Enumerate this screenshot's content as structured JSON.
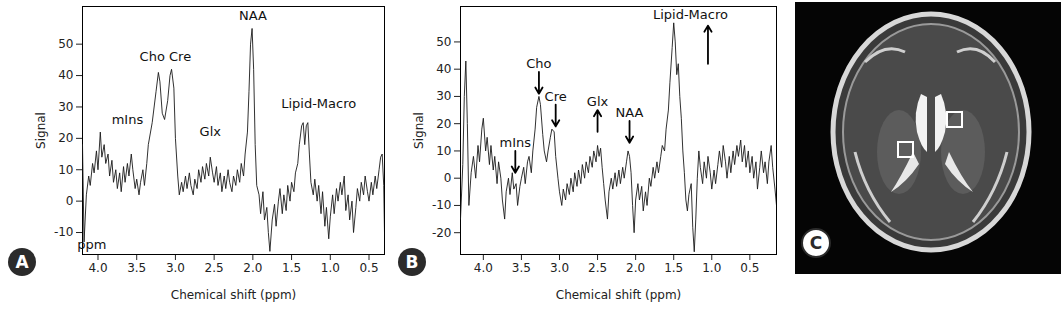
{
  "chart_data": [
    {
      "type": "line",
      "panel_label": "A",
      "x_label": "Chemical shift (ppm)",
      "y_label": "Signal",
      "color": "#1a1a1a",
      "grid": false,
      "xlim": [
        4.2,
        0.3
      ],
      "ylim": [
        -17,
        62
      ],
      "xticks": [
        {
          "value": 4,
          "label": "4.0"
        },
        3.5,
        {
          "value": 3,
          "label": "3.0"
        },
        2.5,
        {
          "value": 2,
          "label": "2.0"
        },
        1.5,
        {
          "value": 1,
          "label": "1.0"
        },
        0.5
      ],
      "yticks": [
        -10,
        0,
        10,
        20,
        30,
        40,
        50
      ],
      "annotations": [
        {
          "text": "mIns",
          "x": 3.62,
          "y": 26
        },
        {
          "text": "Cho Cre",
          "x": 3.13,
          "y": 46
        },
        {
          "text": "Glx",
          "x": 2.55,
          "y": 22
        },
        {
          "text": "NAA",
          "x": 2.0,
          "y": 59
        },
        {
          "text": "Lipid-Macro",
          "x": 1.15,
          "y": 31
        },
        {
          "text": "ppm",
          "x": 4.08,
          "y": -14
        }
      ],
      "x": [
        4.2,
        4.18,
        4.15,
        4.12,
        4.1,
        4.07,
        4.05,
        4.02,
        4.0,
        3.97,
        3.95,
        3.92,
        3.9,
        3.87,
        3.85,
        3.82,
        3.8,
        3.77,
        3.75,
        3.72,
        3.7,
        3.67,
        3.65,
        3.62,
        3.6,
        3.57,
        3.55,
        3.52,
        3.5,
        3.47,
        3.45,
        3.42,
        3.4,
        3.37,
        3.35,
        3.3,
        3.25,
        3.22,
        3.2,
        3.17,
        3.14,
        3.1,
        3.07,
        3.05,
        3.02,
        3.0,
        2.97,
        2.95,
        2.92,
        2.9,
        2.87,
        2.85,
        2.82,
        2.8,
        2.77,
        2.75,
        2.72,
        2.7,
        2.67,
        2.65,
        2.62,
        2.6,
        2.57,
        2.55,
        2.52,
        2.5,
        2.47,
        2.45,
        2.42,
        2.4,
        2.37,
        2.35,
        2.32,
        2.3,
        2.27,
        2.25,
        2.22,
        2.2,
        2.17,
        2.15,
        2.12,
        2.1,
        2.07,
        2.05,
        2.03,
        2.01,
        1.99,
        1.97,
        1.95,
        1.92,
        1.9,
        1.87,
        1.85,
        1.82,
        1.8,
        1.78,
        1.75,
        1.72,
        1.7,
        1.67,
        1.65,
        1.62,
        1.6,
        1.57,
        1.55,
        1.52,
        1.5,
        1.47,
        1.45,
        1.42,
        1.4,
        1.37,
        1.35,
        1.33,
        1.31,
        1.29,
        1.27,
        1.25,
        1.22,
        1.2,
        1.17,
        1.15,
        1.12,
        1.1,
        1.07,
        1.05,
        1.02,
        1.0,
        0.97,
        0.95,
        0.92,
        0.9,
        0.87,
        0.85,
        0.82,
        0.8,
        0.77,
        0.75,
        0.72,
        0.7,
        0.67,
        0.65,
        0.62,
        0.6,
        0.57,
        0.55,
        0.52,
        0.5,
        0.47,
        0.45,
        0.42,
        0.4,
        0.37,
        0.35,
        0.33,
        0.31,
        0.3
      ],
      "values": [
        18,
        -13,
        2,
        8,
        5,
        12,
        9,
        16,
        10,
        22,
        14,
        18,
        12,
        15,
        8,
        13,
        6,
        10,
        4,
        9,
        3,
        11,
        6,
        12,
        8,
        15,
        10,
        4,
        7,
        2,
        6,
        10,
        5,
        12,
        18,
        25,
        35,
        41,
        38,
        28,
        26,
        32,
        40,
        42,
        36,
        20,
        8,
        2,
        6,
        3,
        8,
        4,
        9,
        5,
        2,
        7,
        4,
        10,
        6,
        11,
        7,
        12,
        8,
        14,
        9,
        6,
        11,
        5,
        9,
        3,
        8,
        4,
        10,
        6,
        3,
        8,
        5,
        10,
        6,
        12,
        8,
        15,
        22,
        35,
        50,
        55,
        42,
        18,
        5,
        2,
        -4,
        3,
        -6,
        -2,
        -10,
        -16,
        -6,
        -1,
        -8,
        0,
        4,
        -4,
        2,
        -3,
        5,
        0,
        6,
        3,
        9,
        12,
        18,
        24,
        25,
        18,
        24,
        25,
        15,
        6,
        2,
        7,
        0,
        5,
        -4,
        3,
        -8,
        -2,
        -12,
        -5,
        2,
        -4,
        4,
        0,
        6,
        2,
        8,
        -3,
        2,
        -6,
        0,
        -10,
        -2,
        4,
        0,
        6,
        2,
        8,
        3,
        0,
        6,
        2,
        8,
        4,
        10,
        14,
        15,
        5,
        -10
      ]
    },
    {
      "type": "line",
      "panel_label": "B",
      "x_label": "Chemical shift (ppm)",
      "y_label": "Signal",
      "color": "#1a1a1a",
      "grid": false,
      "xlim": [
        4.3,
        0.15
      ],
      "ylim": [
        -28,
        63
      ],
      "xticks": [
        {
          "value": 4,
          "label": "4.0"
        },
        3.5,
        {
          "value": 3,
          "label": "3.0"
        },
        2.5,
        {
          "value": 2,
          "label": "2.0"
        },
        1.5,
        {
          "value": 1,
          "label": "1.0"
        },
        0.5
      ],
      "yticks": [
        -20,
        -10,
        0,
        10,
        20,
        30,
        40,
        50
      ],
      "annotations": [
        {
          "text": "mIns",
          "x": 3.58,
          "y": 13,
          "arrow": "down"
        },
        {
          "text": "Cho",
          "x": 3.27,
          "y": 42,
          "arrow": "down"
        },
        {
          "text": "Cre",
          "x": 3.05,
          "y": 30,
          "arrow": "down"
        },
        {
          "text": "Glx",
          "x": 2.5,
          "y": 28,
          "arrow": "up"
        },
        {
          "text": "NAA",
          "x": 2.08,
          "y": 24,
          "arrow": "down"
        },
        {
          "text": "Lipid-Macro",
          "x": 1.28,
          "y": 60,
          "arrow": "up",
          "arrow_x": 1.05
        }
      ],
      "x": [
        4.3,
        4.27,
        4.25,
        4.23,
        4.21,
        4.19,
        4.16,
        4.13,
        4.1,
        4.07,
        4.05,
        4.02,
        4.0,
        3.97,
        3.95,
        3.92,
        3.9,
        3.87,
        3.85,
        3.82,
        3.8,
        3.77,
        3.75,
        3.72,
        3.7,
        3.67,
        3.65,
        3.62,
        3.6,
        3.57,
        3.55,
        3.52,
        3.5,
        3.47,
        3.45,
        3.42,
        3.4,
        3.37,
        3.35,
        3.32,
        3.3,
        3.27,
        3.25,
        3.22,
        3.2,
        3.17,
        3.15,
        3.12,
        3.1,
        3.07,
        3.05,
        3.02,
        3.0,
        2.97,
        2.95,
        2.92,
        2.9,
        2.87,
        2.85,
        2.82,
        2.8,
        2.77,
        2.75,
        2.72,
        2.7,
        2.67,
        2.65,
        2.62,
        2.6,
        2.57,
        2.55,
        2.52,
        2.5,
        2.48,
        2.46,
        2.44,
        2.42,
        2.4,
        2.37,
        2.35,
        2.32,
        2.3,
        2.27,
        2.25,
        2.22,
        2.2,
        2.17,
        2.15,
        2.12,
        2.1,
        2.08,
        2.06,
        2.04,
        2.02,
        2.0,
        1.97,
        1.95,
        1.92,
        1.9,
        1.87,
        1.85,
        1.82,
        1.8,
        1.77,
        1.75,
        1.72,
        1.7,
        1.67,
        1.65,
        1.62,
        1.6,
        1.57,
        1.55,
        1.52,
        1.5,
        1.48,
        1.46,
        1.44,
        1.42,
        1.4,
        1.38,
        1.36,
        1.34,
        1.32,
        1.3,
        1.27,
        1.25,
        1.23,
        1.21,
        1.19,
        1.17,
        1.15,
        1.12,
        1.1,
        1.07,
        1.05,
        1.02,
        1.0,
        0.97,
        0.95,
        0.92,
        0.9,
        0.87,
        0.85,
        0.82,
        0.8,
        0.77,
        0.75,
        0.72,
        0.7,
        0.67,
        0.65,
        0.62,
        0.6,
        0.57,
        0.55,
        0.52,
        0.5,
        0.47,
        0.45,
        0.42,
        0.4,
        0.37,
        0.35,
        0.32,
        0.3,
        0.27,
        0.25,
        0.22,
        0.2,
        0.17,
        0.15
      ],
      "values": [
        -15,
        5,
        30,
        43,
        20,
        -10,
        2,
        8,
        0,
        12,
        6,
        18,
        22,
        10,
        15,
        5,
        12,
        3,
        8,
        -2,
        6,
        0,
        -8,
        -15,
        -5,
        0,
        -6,
        2,
        -4,
        -2,
        -10,
        -3,
        0,
        4,
        -2,
        6,
        8,
        2,
        10,
        18,
        26,
        30,
        27,
        16,
        10,
        6,
        10,
        15,
        18,
        17,
        8,
        0,
        -5,
        -10,
        -4,
        -8,
        -2,
        -6,
        0,
        -5,
        2,
        -3,
        3,
        -2,
        5,
        0,
        6,
        2,
        8,
        4,
        10,
        6,
        12,
        8,
        11,
        4,
        -2,
        -8,
        -15,
        -5,
        0,
        -4,
        2,
        -3,
        3,
        -2,
        4,
        0,
        6,
        10,
        8,
        2,
        -10,
        -20,
        -8,
        -2,
        -8,
        -3,
        -12,
        -5,
        -10,
        0,
        -3,
        4,
        0,
        6,
        2,
        8,
        12,
        10,
        18,
        25,
        35,
        48,
        57,
        50,
        38,
        42,
        30,
        22,
        10,
        2,
        -8,
        -12,
        -6,
        -2,
        -18,
        -27,
        -15,
        0,
        10,
        4,
        -2,
        6,
        0,
        8,
        2,
        -4,
        3,
        -2,
        5,
        10,
        4,
        12,
        6,
        0,
        8,
        2,
        10,
        5,
        12,
        8,
        14,
        6,
        12,
        4,
        10,
        2,
        8,
        0,
        6,
        -4,
        4,
        10,
        2,
        6,
        -2,
        6,
        12,
        4,
        -4,
        -10
      ]
    }
  ],
  "image": {
    "panel_label": "C"
  }
}
